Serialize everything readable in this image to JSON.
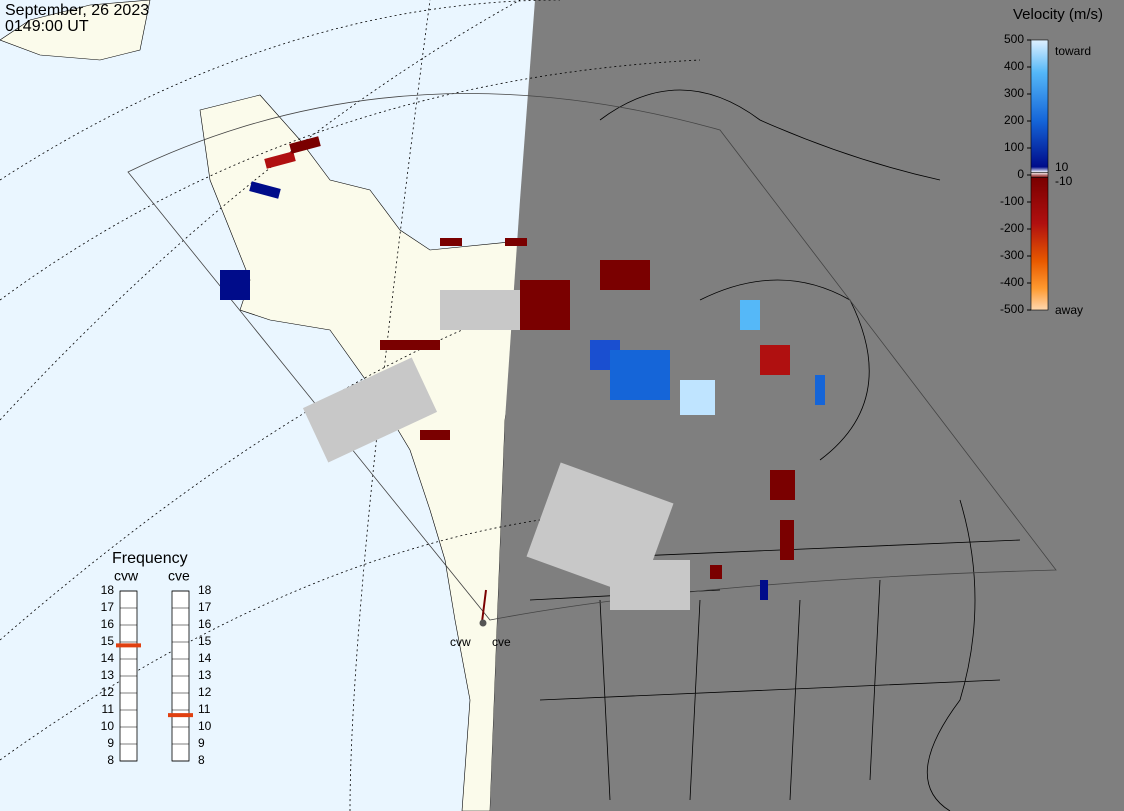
{
  "header": {
    "date": "September, 26 2023",
    "time": "0149:00 UT"
  },
  "velocity_scale": {
    "title": "Velocity (m/s)",
    "ticks": [
      500,
      400,
      300,
      200,
      100,
      0,
      -100,
      -200,
      -300,
      -400,
      -500
    ],
    "inner_ticks": [
      10,
      -10
    ],
    "toward": "toward",
    "away": "away"
  },
  "frequency": {
    "title": "Frequency",
    "ticks": [
      18,
      17,
      16,
      15,
      14,
      13,
      12,
      11,
      10,
      9,
      8
    ],
    "radars": [
      {
        "name": "cvw",
        "value": 14.8
      },
      {
        "name": "cve",
        "value": 10.7
      }
    ]
  },
  "radar_sites": [
    "cvw",
    "cve"
  ]
}
